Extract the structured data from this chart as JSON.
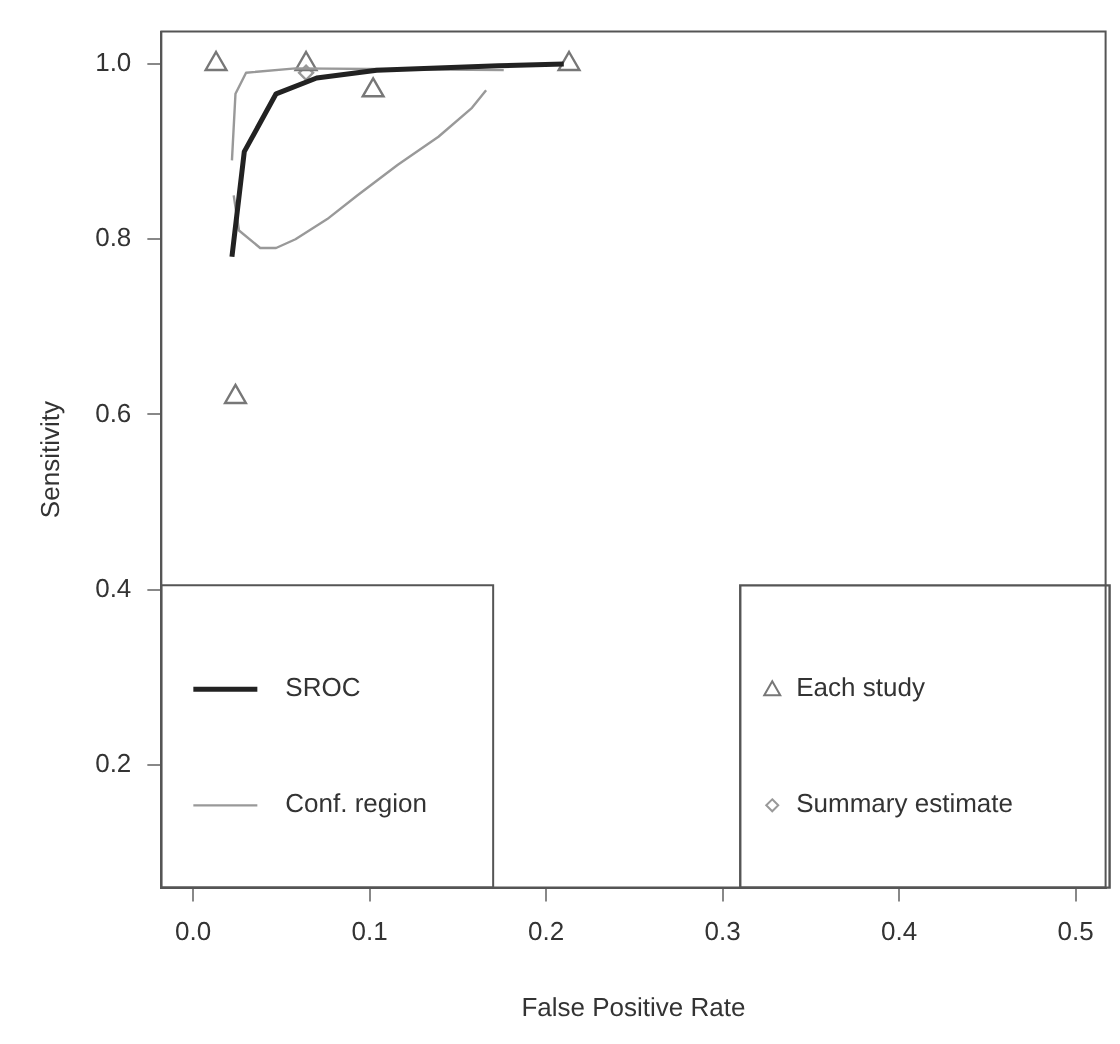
{
  "chart_data": {
    "type": "scatter",
    "xlabel": "False Positive Rate",
    "ylabel": "Sensitivity",
    "xlim": [
      -0.018,
      0.517
    ],
    "ylim": [
      0.06,
      1.037
    ],
    "xticks": [
      {
        "value": 0,
        "label": "0.0"
      },
      0.1,
      0.2,
      0.3,
      0.4,
      0.5
    ],
    "yticks": [
      0.2,
      0.4,
      0.6,
      0.8,
      {
        "value": 1,
        "label": "1.0"
      }
    ],
    "grid": false,
    "legend": "bottom",
    "series": [
      {
        "name": "SROC",
        "type": "line",
        "color": "#222222",
        "marker": "none",
        "x": [
          0.022,
          0.029,
          0.047,
          0.07,
          0.104,
          0.173,
          0.21
        ],
        "values": [
          0.78,
          0.9,
          0.966,
          0.984,
          0.993,
          0.998,
          1.0
        ]
      },
      {
        "name": "Conf. region",
        "type": "line",
        "color": "#999999",
        "marker": "none",
        "x": [
          0.022,
          0.024,
          0.03,
          0.058,
          0.12,
          0.176
        ],
        "values": [
          0.89,
          0.966,
          0.99,
          0.995,
          0.994,
          0.993
        ]
      },
      {
        "type": "line",
        "color": "#999999",
        "marker": "none",
        "x": [
          0.023,
          0.026,
          0.038,
          0.047,
          0.058,
          0.076,
          0.093,
          0.116,
          0.139,
          0.158,
          0.166
        ],
        "values": [
          0.85,
          0.81,
          0.79,
          0.79,
          0.8,
          0.823,
          0.85,
          0.885,
          0.917,
          0.95,
          0.97
        ]
      },
      {
        "name": "Each study",
        "color": "#777777",
        "marker": "triangle",
        "x": [
          0.013,
          0.064,
          0.102,
          0.213,
          0.024
        ],
        "values": [
          1.0,
          1.0,
          0.97,
          1.0,
          0.62
        ]
      },
      {
        "name": "Summary estimate",
        "color": "#999999",
        "marker": "diamond",
        "x": [
          0.064
        ],
        "values": [
          0.99
        ]
      }
    ]
  }
}
